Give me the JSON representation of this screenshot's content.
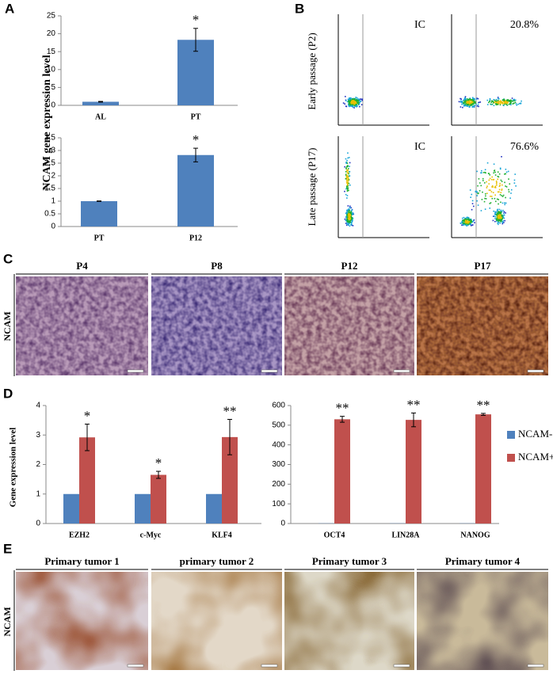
{
  "panel_labels": [
    "A",
    "B",
    "C",
    "D",
    "E"
  ],
  "panel_a": {
    "ylabel": "NCAM gene expression level"
  },
  "panel_b": {
    "rows": [
      "Early passage (P2)",
      "Late passage (P17)"
    ],
    "gates": [
      "IC",
      "20.8%",
      "IC",
      "76.6%"
    ]
  },
  "panel_c": {
    "stain": "NCAM",
    "columns": [
      "P4",
      "P8",
      "P12",
      "P17"
    ]
  },
  "panel_d": {
    "ylabel": "Gene expression level"
  },
  "panel_e": {
    "stain": "NCAM",
    "columns": [
      "Primary tumor 1",
      "primary tumor 2",
      "Primary tumor 3",
      "Primary tumor 4"
    ]
  },
  "chart_data": [
    {
      "type": "bar",
      "categories": [
        "AL",
        "PT"
      ],
      "values": [
        1,
        18.3
      ],
      "errors": [
        0.1,
        3.2
      ],
      "significance": [
        null,
        "*"
      ],
      "color": "#4f81bd",
      "ylim": [
        0,
        25
      ],
      "yticks": [
        0,
        5,
        10,
        15,
        20,
        25
      ]
    },
    {
      "type": "bar",
      "categories": [
        "PT",
        "P12"
      ],
      "values": [
        1,
        2.82
      ],
      "errors": [
        0.01,
        0.27
      ],
      "significance": [
        null,
        "*"
      ],
      "color": "#4f81bd",
      "ylim": [
        0,
        3.5
      ],
      "yticks": [
        0,
        0.5,
        1,
        1.5,
        2,
        2.5,
        3,
        3.5
      ]
    },
    {
      "type": "bar",
      "categories": [
        "EZH2",
        "c-Myc",
        "KLF4"
      ],
      "series": [
        {
          "color": "#4f81bd",
          "values": [
            1,
            1,
            1
          ]
        },
        {
          "color": "#c0504d",
          "values": [
            2.92,
            1.65,
            2.93
          ],
          "errors": [
            0.45,
            0.12,
            0.6
          ],
          "significance": [
            "*",
            "*",
            "**"
          ]
        }
      ],
      "ylim": [
        0,
        4
      ],
      "yticks": [
        0,
        1,
        2,
        3,
        4
      ]
    },
    {
      "type": "bar",
      "categories": [
        "OCT4",
        "LIN28A",
        "NANOG"
      ],
      "series": [
        {
          "name": "NCAM-",
          "color": "#4f81bd",
          "values": [
            1,
            1,
            1
          ]
        },
        {
          "name": "NCAM+",
          "color": "#c0504d",
          "values": [
            530,
            527,
            555
          ],
          "errors": [
            15,
            35,
            5
          ],
          "significance": [
            "**",
            "**",
            "**"
          ]
        }
      ],
      "ylim": [
        0,
        600
      ],
      "yticks": [
        0,
        100,
        200,
        300,
        400,
        500,
        600
      ]
    }
  ]
}
